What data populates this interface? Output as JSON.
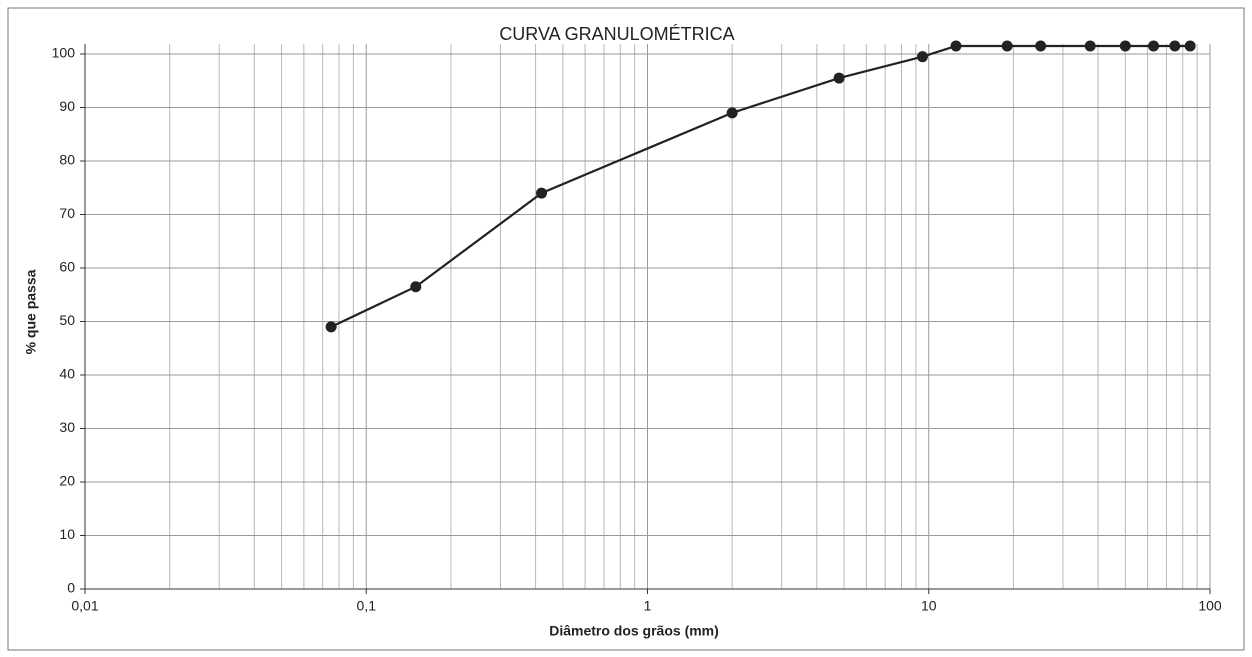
{
  "chart_data": {
    "type": "line",
    "title": "CURVA GRANULOMÉTRICA",
    "x_label": "Diâmetro dos grãos (mm)",
    "y_label": "% que passa",
    "x": [
      0.075,
      0.15,
      0.42,
      2.0,
      4.8,
      9.5,
      12.5,
      19,
      25,
      37.5,
      50,
      63,
      75,
      85
    ],
    "series": [
      {
        "name": "% que passa",
        "color": "#222222",
        "values": [
          49,
          56.5,
          74,
          89,
          95.5,
          99.5,
          101.5,
          101.5,
          101.5,
          101.5,
          101.5,
          101.5,
          101.5,
          101.5
        ]
      }
    ],
    "xlim": [
      0.01,
      100
    ],
    "xscale": "log",
    "xticks": [
      {
        "value": 0.01,
        "label": "0,01"
      },
      {
        "value": 0.1,
        "label": "0,1"
      },
      1,
      10,
      100
    ],
    "ylim": [
      0,
      100
    ],
    "yticks": [
      0,
      10,
      20,
      30,
      40,
      50,
      60,
      70,
      80,
      90,
      100
    ],
    "grid": true
  }
}
